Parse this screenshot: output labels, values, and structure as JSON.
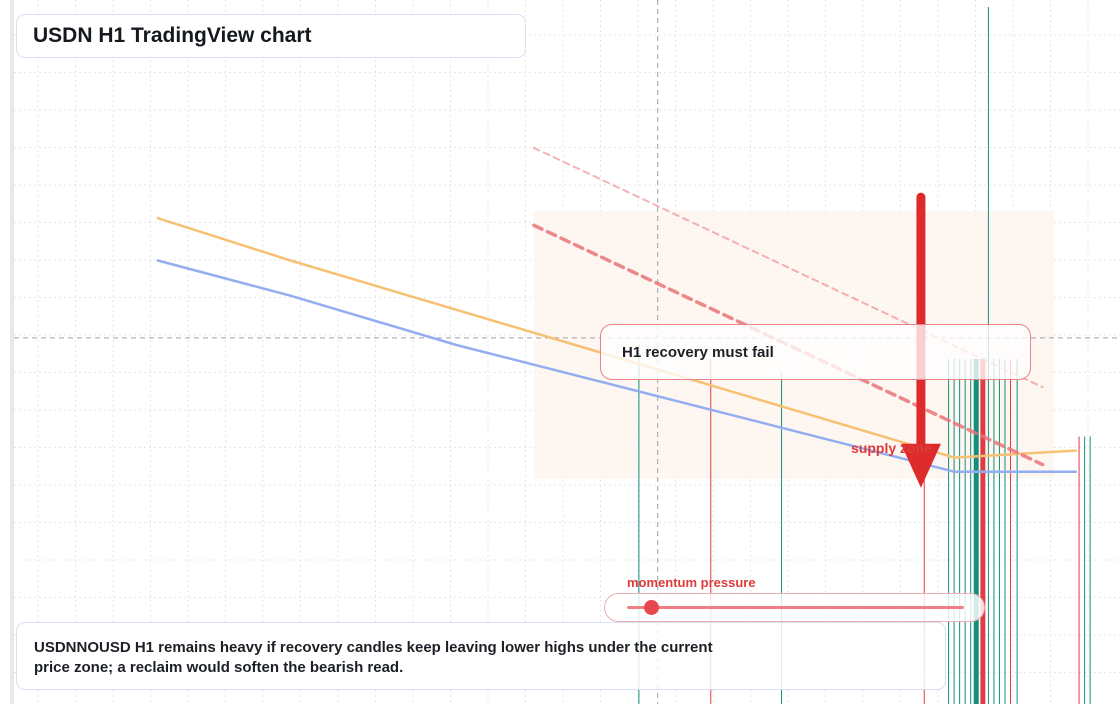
{
  "chart_title": "USDN H1 TradingView chart",
  "callout": "H1 recovery must fail",
  "zone_label": "supply zone",
  "momentum": {
    "label": "momentum pressure",
    "level": 0.07
  },
  "note": "USDNNOUSD H1 remains heavy if recovery candles keep leaving lower highs under the current price zone; a reclaim would soften the bearish read.",
  "colors": {
    "background": "#ffffff",
    "grid": "#e3e6ec",
    "crosshair": "#9aa1ad",
    "bull": "#138f7c",
    "bear": "#de3d47",
    "ma_fast": "#f7c173",
    "ma_slow": "#93aef0",
    "channel": "#e9747a",
    "supply_zone": "#fdf3ec",
    "arrow": "#dd2a2a"
  },
  "icons": {
    "arrow": "down-arrow-icon"
  },
  "chart_data": {
    "type": "line",
    "title": "USDN H1 TradingView chart",
    "timeframe": "H1",
    "grid": true,
    "xlim": [
      0,
      100
    ],
    "ylim": [
      0,
      100
    ],
    "series": [
      {
        "key": "ma_fast",
        "style": "solid",
        "points": [
          [
            13,
            69
          ],
          [
            25,
            63
          ],
          [
            40,
            56
          ],
          [
            55,
            49
          ],
          [
            70,
            42
          ],
          [
            85,
            35
          ],
          [
            96,
            36
          ]
        ]
      },
      {
        "key": "ma_slow",
        "style": "solid",
        "points": [
          [
            13,
            63
          ],
          [
            25,
            58
          ],
          [
            40,
            51
          ],
          [
            55,
            45
          ],
          [
            70,
            39
          ],
          [
            85,
            33
          ],
          [
            96,
            33
          ]
        ]
      },
      {
        "key": "channel_upper",
        "style": "dotted",
        "points": [
          [
            47,
            79
          ],
          [
            93,
            45
          ]
        ]
      },
      {
        "key": "channel_lower",
        "style": "dashed",
        "points": [
          [
            47,
            68
          ],
          [
            93,
            34
          ]
        ]
      }
    ],
    "candles": [
      {
        "x": 56.5,
        "high": 51,
        "low": 0,
        "dir": "bull"
      },
      {
        "x": 63.0,
        "high": 49,
        "low": 0,
        "dir": "bear"
      },
      {
        "x": 69.4,
        "high": 47,
        "low": 0,
        "dir": "bull"
      },
      {
        "x": 82.3,
        "high": 48,
        "low": 0,
        "dir": "bear"
      },
      {
        "x": 84.5,
        "high": 49,
        "low": 0,
        "dir": "bull"
      },
      {
        "x": 85.0,
        "high": 49,
        "low": 0,
        "dir": "bull"
      },
      {
        "x": 85.5,
        "high": 49,
        "low": 0,
        "dir": "bull"
      },
      {
        "x": 86.0,
        "high": 49,
        "low": 0,
        "dir": "bull"
      },
      {
        "x": 86.5,
        "high": 49,
        "low": 0,
        "dir": "bull"
      },
      {
        "x": 87.0,
        "high": 49,
        "low": 0,
        "open": 49,
        "close": 0,
        "dir": "bull"
      },
      {
        "x": 87.6,
        "high": 49,
        "low": 0,
        "open": 49,
        "close": 0,
        "dir": "bear"
      },
      {
        "x": 88.1,
        "high": 99,
        "low": 0,
        "dir": "bull"
      },
      {
        "x": 88.6,
        "high": 49,
        "low": 0,
        "dir": "bull"
      },
      {
        "x": 89.1,
        "high": 49,
        "low": 0,
        "dir": "bull"
      },
      {
        "x": 89.6,
        "high": 49,
        "low": 0,
        "dir": "bull"
      },
      {
        "x": 90.1,
        "high": 49,
        "low": 0,
        "dir": "bear"
      },
      {
        "x": 90.7,
        "high": 49,
        "low": 0,
        "dir": "bull"
      },
      {
        "x": 96.3,
        "high": 38,
        "low": 0,
        "dir": "bear"
      },
      {
        "x": 96.8,
        "high": 38,
        "low": 0,
        "dir": "bull"
      },
      {
        "x": 97.3,
        "high": 38,
        "low": 0,
        "dir": "bull"
      }
    ],
    "supply_zone": {
      "x0": 47,
      "x1": 94,
      "y0": 32,
      "y1": 70
    },
    "crosshair": {
      "x": 58.2,
      "y": 52
    },
    "arrow": {
      "x": 82.0,
      "from": 72,
      "to": 31
    }
  }
}
